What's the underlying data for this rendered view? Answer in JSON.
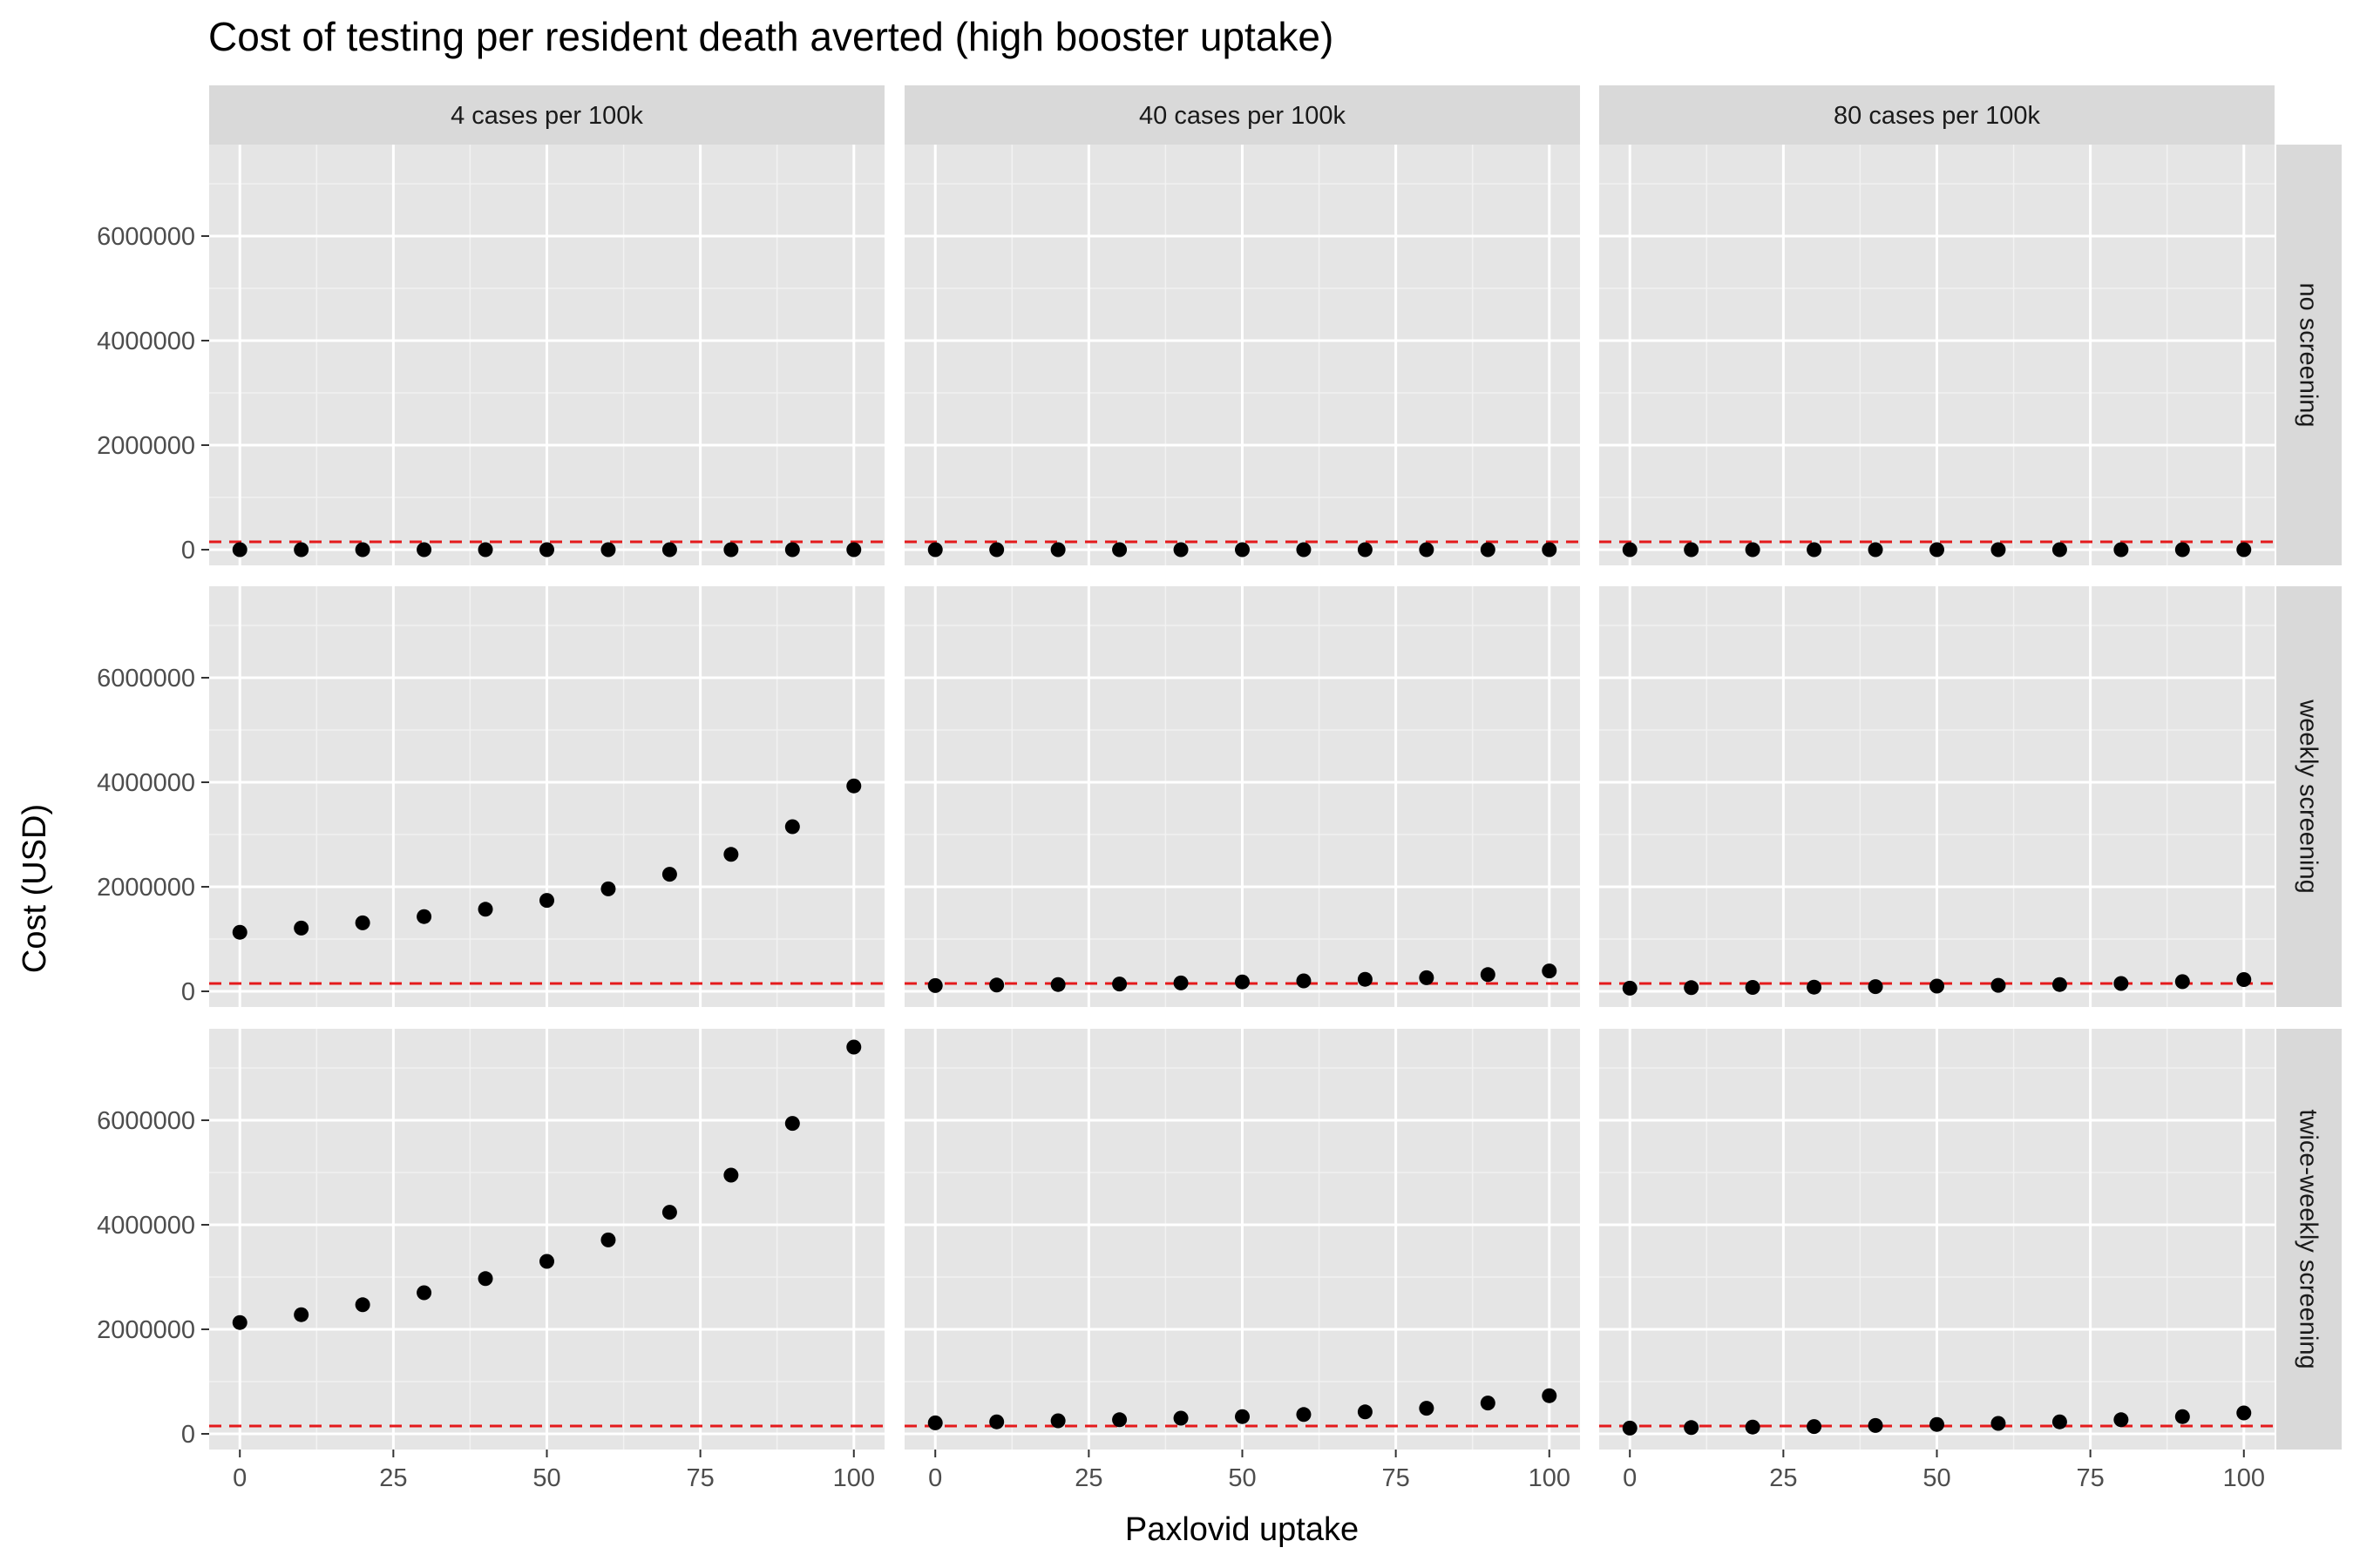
{
  "chart_data": {
    "type": "scatter",
    "title": "Cost of testing per resident death averted (high booster uptake)",
    "xlabel": "Paxlovid uptake",
    "ylabel": "Cost (USD)",
    "xlim": [
      -5,
      105
    ],
    "ylim": [
      -300000,
      7750000
    ],
    "x_ticks": [
      0,
      25,
      50,
      75,
      100
    ],
    "y_ticks": [
      0,
      2000000,
      4000000,
      6000000
    ],
    "x_tick_labels": [
      "0",
      "25",
      "50",
      "75",
      "100"
    ],
    "y_tick_labels": [
      "0",
      "2000000",
      "4000000",
      "6000000"
    ],
    "grid": true,
    "point_color": "#000000",
    "panel_background": "#e5e5e5",
    "strip_background": "#d9d9d9",
    "reference_line": {
      "y": 150000,
      "color": "#e41a1c",
      "style": "dashed"
    },
    "columns": [
      "4 cases per 100k",
      "40 cases per 100k",
      "80 cases per 100k"
    ],
    "rows": [
      "no screening",
      "weekly screening",
      "twice-weekly screening"
    ],
    "x": [
      0,
      10,
      20,
      30,
      40,
      50,
      60,
      70,
      80,
      90,
      100
    ],
    "panels": [
      {
        "row": 0,
        "col": 0,
        "values": [
          0,
          0,
          0,
          0,
          0,
          0,
          0,
          0,
          0,
          0,
          0
        ]
      },
      {
        "row": 0,
        "col": 1,
        "values": [
          0,
          0,
          0,
          0,
          0,
          0,
          0,
          0,
          0,
          0,
          0
        ]
      },
      {
        "row": 0,
        "col": 2,
        "values": [
          0,
          0,
          0,
          0,
          0,
          0,
          0,
          0,
          0,
          0,
          0
        ]
      },
      {
        "row": 1,
        "col": 0,
        "values": [
          1130000,
          1210000,
          1310000,
          1430000,
          1570000,
          1740000,
          1960000,
          2240000,
          2620000,
          3150000,
          3930000
        ]
      },
      {
        "row": 1,
        "col": 1,
        "values": [
          110000,
          120000,
          130000,
          140000,
          160000,
          180000,
          200000,
          230000,
          260000,
          320000,
          390000
        ]
      },
      {
        "row": 1,
        "col": 2,
        "values": [
          60000,
          70000,
          75000,
          80000,
          90000,
          100000,
          115000,
          130000,
          150000,
          185000,
          225000
        ]
      },
      {
        "row": 2,
        "col": 0,
        "values": [
          2130000,
          2280000,
          2470000,
          2700000,
          2970000,
          3300000,
          3710000,
          4240000,
          4950000,
          5940000,
          7400000
        ]
      },
      {
        "row": 2,
        "col": 1,
        "values": [
          210000,
          230000,
          250000,
          270000,
          300000,
          330000,
          370000,
          420000,
          490000,
          590000,
          730000
        ]
      },
      {
        "row": 2,
        "col": 2,
        "values": [
          110000,
          120000,
          130000,
          140000,
          160000,
          180000,
          200000,
          230000,
          270000,
          330000,
          400000
        ]
      }
    ]
  }
}
